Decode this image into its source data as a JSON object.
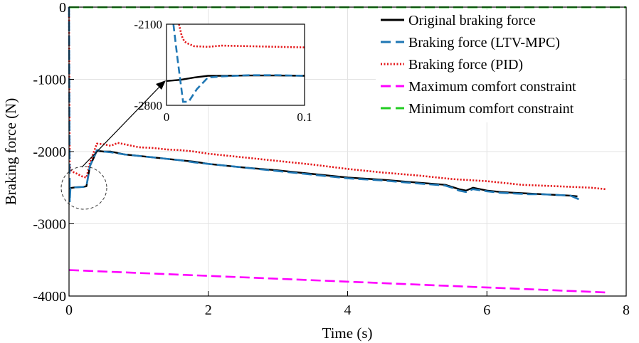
{
  "chart_data": {
    "type": "line",
    "title": "",
    "xlabel": "Time (s)",
    "ylabel": "Braking force (N)",
    "xlim": [
      0,
      8
    ],
    "ylim": [
      -4000,
      0
    ],
    "xticks": [
      0,
      2,
      4,
      6,
      8
    ],
    "yticks": [
      0,
      -1000,
      -2000,
      -3000,
      -4000
    ],
    "grid": true,
    "legend_position": "top-right",
    "series": [
      {
        "name": "Original braking force",
        "color": "#000000",
        "style": "solid",
        "x": [
          0,
          0.01,
          0.02,
          0.05,
          0.1,
          0.2,
          0.25,
          0.3,
          0.4,
          0.5,
          0.6,
          0.8,
          1.0,
          1.2,
          1.4,
          1.6,
          1.8,
          2.0,
          2.5,
          3.0,
          3.5,
          4.0,
          4.5,
          5.0,
          5.4,
          5.5,
          5.6,
          5.7,
          5.8,
          6.0,
          6.2,
          6.4,
          6.6,
          6.8,
          7.0,
          7.2,
          7.3
        ],
        "y": [
          -2520,
          -2515,
          -2505,
          -2500,
          -2495,
          -2490,
          -2480,
          -2200,
          -1990,
          -2000,
          -2000,
          -2040,
          -2060,
          -2080,
          -2100,
          -2120,
          -2140,
          -2170,
          -2220,
          -2260,
          -2310,
          -2360,
          -2390,
          -2430,
          -2460,
          -2490,
          -2520,
          -2540,
          -2500,
          -2540,
          -2560,
          -2570,
          -2580,
          -2590,
          -2600,
          -2610,
          -2620
        ]
      },
      {
        "name": "Braking force (LTV-MPC)",
        "color": "#1f77b4",
        "style": "dashed",
        "x": [
          0,
          0.01,
          0.02,
          0.05,
          0.1,
          0.2,
          0.25,
          0.3,
          0.4,
          0.5,
          0.6,
          0.8,
          1.0,
          1.2,
          1.4,
          1.6,
          1.8,
          2.0,
          2.5,
          3.0,
          3.5,
          4.0,
          4.5,
          5.0,
          5.4,
          5.5,
          5.6,
          5.7,
          5.8,
          6.0,
          6.2,
          6.4,
          6.6,
          6.8,
          7.0,
          7.2,
          7.32
        ],
        "y": [
          0,
          -2700,
          -2500,
          -2495,
          -2495,
          -2490,
          -2480,
          -2200,
          -1980,
          -2000,
          -2010,
          -2040,
          -2060,
          -2080,
          -2100,
          -2120,
          -2150,
          -2170,
          -2220,
          -2270,
          -2320,
          -2370,
          -2400,
          -2440,
          -2470,
          -2500,
          -2540,
          -2560,
          -2520,
          -2550,
          -2570,
          -2580,
          -2590,
          -2590,
          -2600,
          -2610,
          -2660
        ]
      },
      {
        "name": "Braking force (PID)",
        "color": "#e41a1c",
        "style": "dotted",
        "x": [
          0,
          0.01,
          0.02,
          0.05,
          0.1,
          0.2,
          0.25,
          0.3,
          0.4,
          0.5,
          0.6,
          0.7,
          0.8,
          1.0,
          1.2,
          1.4,
          1.6,
          1.8,
          2.0,
          2.5,
          3.0,
          3.5,
          4.0,
          4.5,
          5.0,
          5.5,
          6.0,
          6.2,
          6.5,
          7.0,
          7.5,
          7.7
        ],
        "y": [
          0,
          -2150,
          -2250,
          -2280,
          -2300,
          -2350,
          -2360,
          -2150,
          -1890,
          -1900,
          -1920,
          -1880,
          -1900,
          -1940,
          -1950,
          -1970,
          -1980,
          -2000,
          -2030,
          -2080,
          -2130,
          -2180,
          -2240,
          -2290,
          -2330,
          -2380,
          -2410,
          -2430,
          -2460,
          -2480,
          -2500,
          -2520
        ]
      },
      {
        "name": "Maximum comfort constraint",
        "color": "#ff00ff",
        "style": "dashed",
        "x": [
          0,
          7.7
        ],
        "y": [
          -3640,
          -3950
        ]
      },
      {
        "name": "Minimum comfort constraint",
        "color": "#22cc22",
        "style": "dashed",
        "x": [
          0,
          8
        ],
        "y": [
          -2,
          -2
        ]
      }
    ],
    "inset": {
      "xlim": [
        0,
        0.1
      ],
      "ylim": [
        -2800,
        -2100
      ],
      "xticks": [
        0,
        0.1
      ],
      "yticks": [
        -2100,
        -2800
      ],
      "series": [
        {
          "name": "Original braking force",
          "x": [
            0,
            0.01,
            0.02,
            0.03,
            0.04,
            0.06,
            0.08,
            0.1
          ],
          "y": [
            -2590,
            -2580,
            -2560,
            -2545,
            -2545,
            -2543,
            -2543,
            -2545
          ]
        },
        {
          "name": "Braking force (LTV-MPC)",
          "x": [
            0.005,
            0.008,
            0.012,
            0.016,
            0.022,
            0.03,
            0.04,
            0.06,
            0.08,
            0.1
          ],
          "y": [
            -2100,
            -2400,
            -2770,
            -2770,
            -2660,
            -2560,
            -2550,
            -2540,
            -2540,
            -2545
          ]
        },
        {
          "name": "Braking force (PID)",
          "x": [
            0.009,
            0.011,
            0.013,
            0.016,
            0.02,
            0.03,
            0.04,
            0.06,
            0.08,
            0.1
          ],
          "y": [
            -2100,
            -2200,
            -2250,
            -2270,
            -2290,
            -2295,
            -2285,
            -2290,
            -2295,
            -2300
          ]
        }
      ]
    }
  }
}
